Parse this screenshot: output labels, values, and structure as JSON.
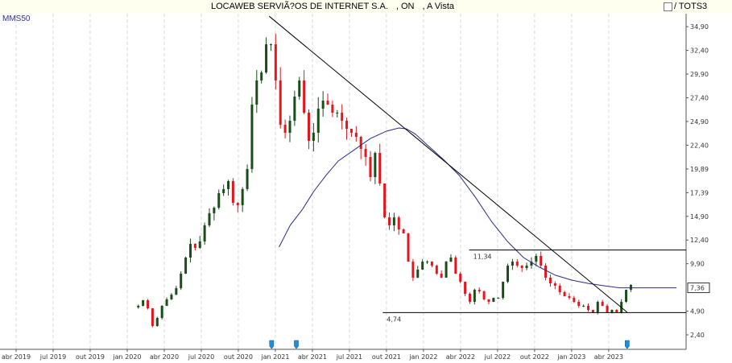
{
  "header": {
    "title": "LOCAWEB SERVIÃ?OS DE INTERNET S.A.",
    "share_class": ", ON",
    "market": ", A Vista",
    "compare_label": "/ TOTS3"
  },
  "indicator_label": "MMS50",
  "colors": {
    "up": "#1b4d1b",
    "down": "#e8141c",
    "ma": "#2a2a8c",
    "line": "#000000",
    "marker": "#1e8fd8"
  },
  "chart_data": {
    "type": "candlestick",
    "title": "LOCAWEB SERVIÃ?OS DE INTERNET S.A. , ON , A Vista",
    "price_ticks": [
      "34,90",
      "32,40",
      "29,90",
      "27,40",
      "24,90",
      "22,40",
      "19,89",
      "17,39",
      "14,90",
      "12,40",
      "9,90",
      "4,90",
      "2,40"
    ],
    "price_tick_values": [
      34.9,
      32.4,
      29.9,
      27.4,
      24.9,
      22.4,
      19.89,
      17.39,
      14.9,
      12.4,
      9.9,
      4.9,
      2.4
    ],
    "last_price_label": "7,36",
    "last_price": 7.36,
    "date_ticks": [
      "abr 2019",
      "jul 2019",
      "out 2019",
      "jan 2020",
      "abr 2020",
      "jul 2020",
      "out 2020",
      "jan 2021",
      "abr 2021",
      "jul 2021",
      "out 2021",
      "jan 2022",
      "abr 2022",
      "jul 2022",
      "out 2022",
      "jan 2023",
      "abr 2023"
    ],
    "date_tick_months": [
      3,
      6,
      9,
      12,
      15,
      18,
      21,
      24,
      27,
      30,
      33,
      36,
      39,
      42,
      45,
      48,
      51
    ],
    "candles_start_month": 12.9,
    "candles_end_month": 52.8,
    "closes": [
      5.46,
      6.05,
      5.2,
      3.33,
      4.18,
      5.46,
      6.14,
      6.64,
      7.32,
      8.85,
      10.55,
      11.99,
      11.57,
      12.25,
      13.95,
      15.22,
      15.81,
      17.34,
      17.77,
      18.61,
      16.32,
      16.07,
      17.77,
      19.89,
      26.68,
      29.23,
      30.07,
      33.04,
      33.04,
      29.23,
      24.56,
      23.71,
      24.98,
      27.53,
      29.23,
      25.83,
      22.86,
      23.71,
      26.25,
      27.1,
      26.68,
      25.83,
      25.83,
      24.98,
      24.13,
      23.71,
      23.28,
      22.01,
      21.16,
      19.04,
      21.59,
      18.36,
      14.79,
      13.95,
      14.79,
      13.52,
      13.1,
      10.12,
      8.43,
      9.28,
      10.12,
      10.12,
      9.7,
      8.85,
      8.43,
      10.12,
      10.55,
      8.85,
      8.0,
      6.73,
      5.88,
      7.15,
      6.98,
      6.14,
      5.88,
      6.3,
      6.3,
      8.0,
      9.7,
      10.12,
      9.7,
      9.45,
      9.7,
      10.12,
      10.72,
      9.7,
      8.43,
      7.83,
      7.58,
      6.9,
      6.47,
      6.3,
      5.88,
      5.46,
      5.46,
      5.03,
      4.78,
      5.88,
      5.46,
      4.78,
      5.03,
      4.78,
      5.88,
      7.15,
      7.66
    ],
    "moving_average": {
      "name": "MMS50",
      "points": [
        [
          24.3,
          11.65
        ],
        [
          25.2,
          13.95
        ],
        [
          26.2,
          15.64
        ],
        [
          27.1,
          17.51
        ],
        [
          28.1,
          19.21
        ],
        [
          29.1,
          20.74
        ],
        [
          30.4,
          21.92
        ],
        [
          31.7,
          23.11
        ],
        [
          33.0,
          23.88
        ],
        [
          34.0,
          24.22
        ],
        [
          34.6,
          24.13
        ],
        [
          35.3,
          23.62
        ],
        [
          36.3,
          22.43
        ],
        [
          37.6,
          20.91
        ],
        [
          38.9,
          19.21
        ],
        [
          40.2,
          16.92
        ],
        [
          41.5,
          14.37
        ],
        [
          42.8,
          12.25
        ],
        [
          44.1,
          10.55
        ],
        [
          45.4,
          9.53
        ],
        [
          46.7,
          8.68
        ],
        [
          48.0,
          8.17
        ],
        [
          49.3,
          7.83
        ],
        [
          50.6,
          7.58
        ],
        [
          51.9,
          7.36
        ],
        [
          53.2,
          7.36
        ],
        [
          56.5,
          7.36
        ]
      ]
    },
    "trendline": {
      "from": [
        23.5,
        36.0
      ],
      "to": [
        52.5,
        4.78
      ]
    },
    "resistance": {
      "label": "11,34",
      "value": 11.34,
      "from_month": 39.7
    },
    "support": {
      "label": "4,74",
      "value": 4.74,
      "from_month": 32.7
    },
    "event_marker_months": [
      23.7,
      25.7,
      52.5
    ]
  }
}
